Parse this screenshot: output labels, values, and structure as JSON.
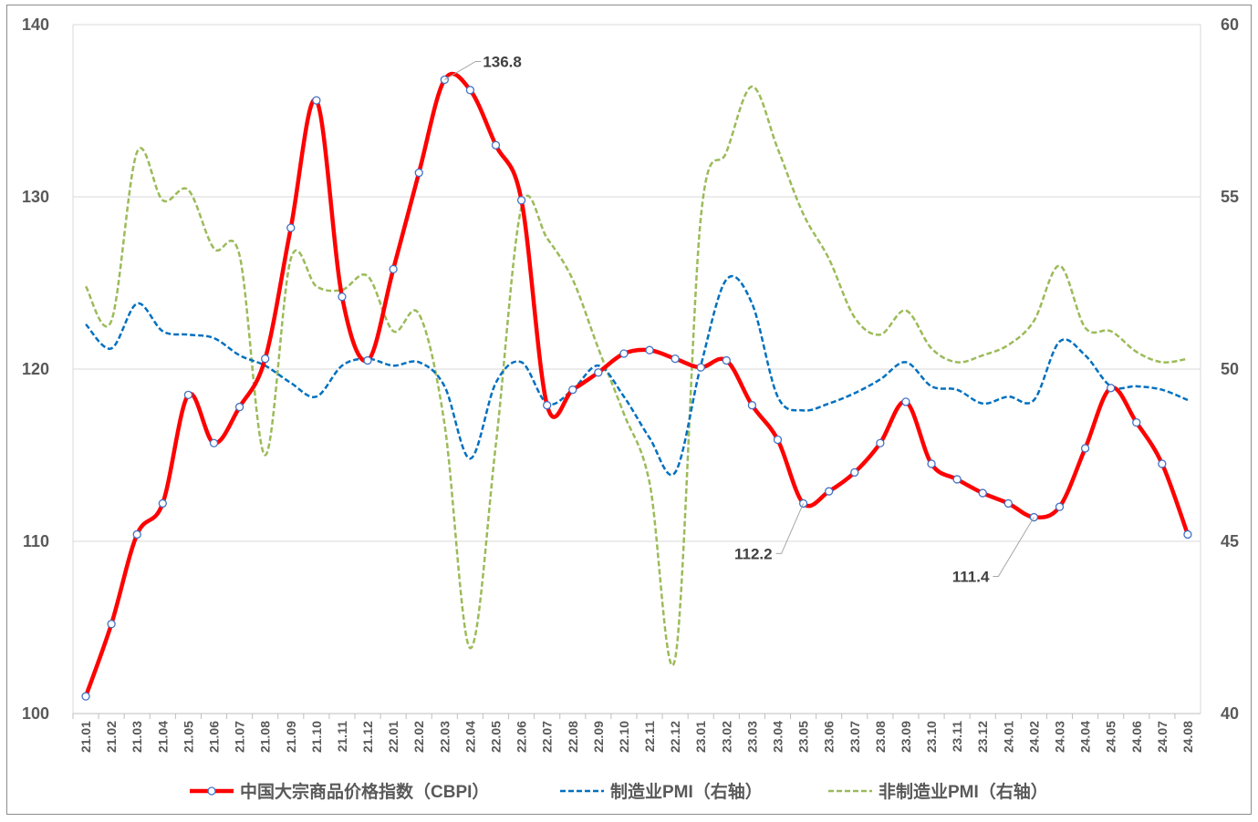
{
  "chart_data": {
    "type": "line",
    "title": "",
    "categories": [
      "21.01",
      "21.02",
      "21.03",
      "21.04",
      "21.05",
      "21.06",
      "21.07",
      "21.08",
      "21.09",
      "21.10",
      "21.11",
      "21.12",
      "22.01",
      "22.02",
      "22.03",
      "22.04",
      "22.05",
      "22.06",
      "22.07",
      "22.08",
      "22.09",
      "22.10",
      "22.11",
      "22.12",
      "23.01",
      "23.02",
      "23.03",
      "23.04",
      "23.05",
      "23.06",
      "23.07",
      "23.08",
      "23.09",
      "23.10",
      "23.11",
      "23.12",
      "24.01",
      "24.02",
      "24.03",
      "24.04",
      "24.05",
      "24.06",
      "24.07",
      "24.08"
    ],
    "left_axis": {
      "ylim": [
        100,
        140
      ],
      "ticks": [
        100,
        110,
        120,
        130,
        140
      ]
    },
    "right_axis": {
      "ylim": [
        40,
        60
      ],
      "ticks": [
        40,
        45,
        50,
        55,
        60
      ]
    },
    "grid": true,
    "legend_position": "bottom",
    "series": [
      {
        "name": "中国大宗商品价格指数（CBPI）",
        "axis": "left",
        "color": "#FF0000",
        "style": "solid-markers",
        "values": [
          101.0,
          105.2,
          110.4,
          112.2,
          118.5,
          115.7,
          117.8,
          120.6,
          128.2,
          135.6,
          124.2,
          120.5,
          125.8,
          131.4,
          136.8,
          136.2,
          133.0,
          129.8,
          117.9,
          118.8,
          119.8,
          120.9,
          121.1,
          120.6,
          120.1,
          120.5,
          117.9,
          115.9,
          112.2,
          112.9,
          114.0,
          115.7,
          118.1,
          114.5,
          113.6,
          112.8,
          112.2,
          111.4,
          112.0,
          115.4,
          118.9,
          116.9,
          114.5,
          110.4
        ]
      },
      {
        "name": "制造业PMI（右轴）",
        "axis": "right",
        "color": "#0070C0",
        "style": "dashed",
        "values": [
          51.3,
          50.6,
          51.9,
          51.1,
          51.0,
          50.9,
          50.4,
          50.1,
          49.6,
          49.2,
          50.1,
          50.3,
          50.1,
          50.2,
          49.5,
          47.4,
          49.6,
          50.2,
          49.0,
          49.4,
          50.1,
          49.2,
          48.0,
          47.0,
          50.1,
          52.6,
          51.9,
          49.2,
          48.8,
          49.0,
          49.3,
          49.7,
          50.2,
          49.5,
          49.4,
          49.0,
          49.2,
          49.1,
          50.8,
          50.4,
          49.5,
          49.5,
          49.4,
          49.1
        ]
      },
      {
        "name": "非制造业PMI（右轴）",
        "axis": "right",
        "color": "#9BBB59",
        "style": "dashed",
        "values": [
          52.4,
          51.4,
          56.3,
          54.9,
          55.2,
          53.5,
          53.3,
          47.5,
          53.2,
          52.4,
          52.3,
          52.7,
          51.1,
          51.6,
          48.4,
          41.9,
          47.8,
          54.7,
          53.8,
          52.6,
          50.6,
          48.7,
          46.7,
          41.6,
          54.4,
          56.3,
          58.2,
          56.4,
          54.5,
          53.2,
          51.5,
          51.0,
          51.7,
          50.6,
          50.2,
          50.4,
          50.7,
          51.4,
          53.0,
          51.2,
          51.1,
          50.5,
          50.2,
          50.3
        ]
      }
    ],
    "annotations": [
      {
        "text": "136.8",
        "category": "22.03",
        "value": 136.8
      },
      {
        "text": "112.2",
        "category": "23.05",
        "value": 112.2
      },
      {
        "text": "111.4",
        "category": "24.02",
        "value": 111.4
      }
    ]
  }
}
